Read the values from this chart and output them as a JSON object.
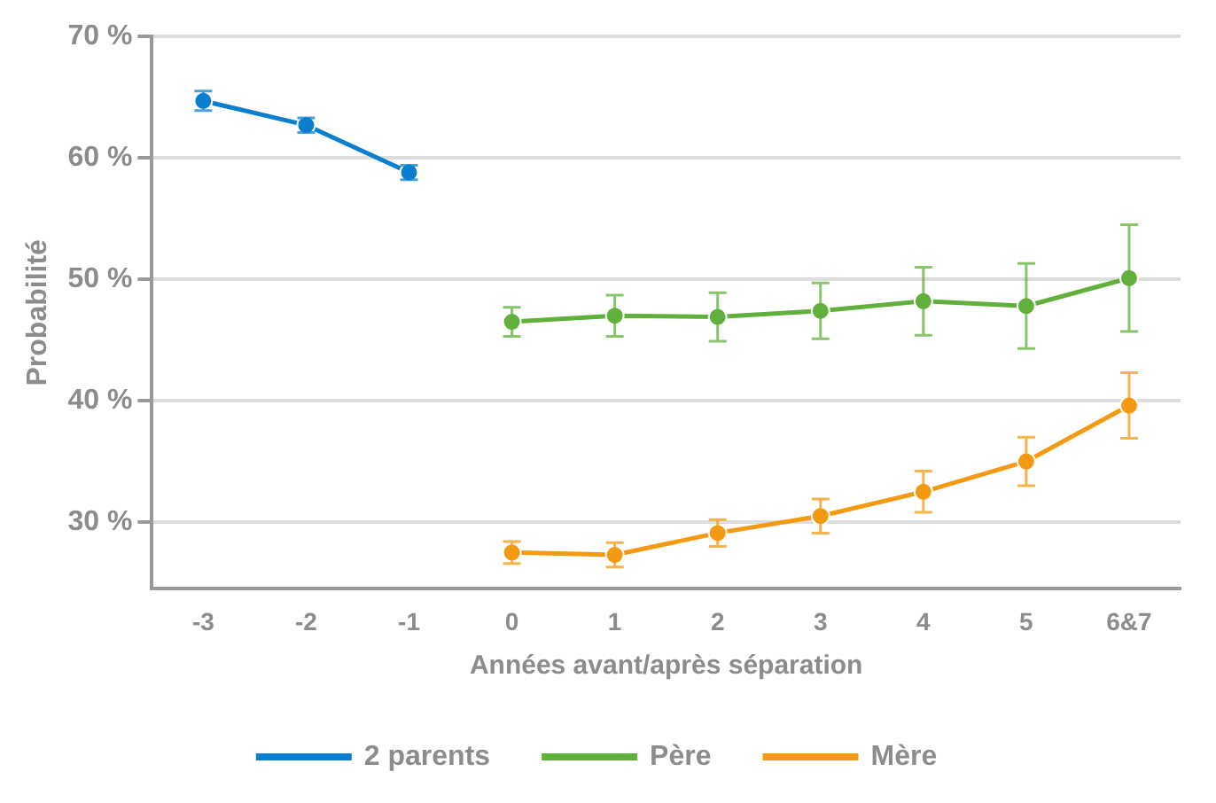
{
  "chart_data": {
    "type": "line",
    "xlabel": "Années avant/après séparation",
    "ylabel": "Probabilité",
    "categories": [
      "-3",
      "-2",
      "-1",
      "0",
      "1",
      "2",
      "3",
      "4",
      "5",
      "6&7"
    ],
    "ylim": [
      24.5,
      70
    ],
    "yticks": [
      {
        "value": 30,
        "label": "30 %"
      },
      {
        "value": 40,
        "label": "40 %"
      },
      {
        "value": 50,
        "label": "50 %"
      },
      {
        "value": 60,
        "label": "60 %"
      },
      {
        "value": 70,
        "label": "70 %"
      }
    ],
    "grid": "y",
    "legend": "bottom",
    "marker": "circle",
    "line_style": "solid",
    "series": [
      {
        "name": "2 parents",
        "color": "#0a7fd0",
        "values": [
          64.7,
          62.7,
          58.8,
          null,
          null,
          null,
          null,
          null,
          null,
          null
        ],
        "errors": [
          0.8,
          0.6,
          0.6,
          null,
          null,
          null,
          null,
          null,
          null,
          null
        ]
      },
      {
        "name": "Père",
        "color": "#62b03c",
        "values": [
          null,
          null,
          null,
          46.5,
          47.0,
          46.9,
          47.4,
          48.2,
          47.8,
          50.1
        ],
        "errors": [
          null,
          null,
          null,
          1.2,
          1.7,
          2.0,
          2.3,
          2.8,
          3.5,
          4.4
        ]
      },
      {
        "name": "Mère",
        "color": "#f39a12",
        "values": [
          null,
          null,
          null,
          27.5,
          27.3,
          29.1,
          30.5,
          32.5,
          35.0,
          39.6
        ],
        "errors": [
          null,
          null,
          null,
          0.9,
          1.0,
          1.1,
          1.4,
          1.7,
          2.0,
          2.7
        ]
      }
    ]
  }
}
